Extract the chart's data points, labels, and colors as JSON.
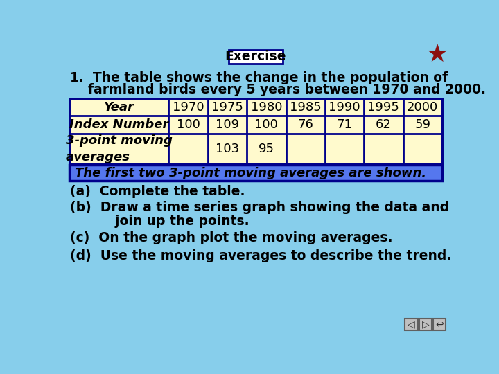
{
  "bg_color": "#87CEEB",
  "title_box_text": "Exercise",
  "title_box_facecolor": "#FFFFFF",
  "title_box_edgecolor": "#00008B",
  "intro_line1": "1.  The table shows the change in the population of",
  "intro_line2": "    farmland birds every 5 years between 1970 and 2000.",
  "table_years": [
    "Year",
    "1970",
    "1975",
    "1980",
    "1985",
    "1990",
    "1995",
    "2000"
  ],
  "table_index": [
    "Index Number",
    "100",
    "109",
    "100",
    "76",
    "71",
    "62",
    "59"
  ],
  "table_moving_label": "3-point moving\naverages",
  "table_moving_values": [
    "",
    "103",
    "95",
    "",
    "",
    "",
    ""
  ],
  "table_facecolor": "#FFFACD",
  "table_edgecolor": "#00008B",
  "highlight_text": "The first two 3-point moving averages are shown.",
  "highlight_bg": "#5577EE",
  "highlight_edge": "#00008B",
  "bullet_a": "(a)  Complete the table.",
  "bullet_b1": "(b)  Draw a time series graph showing the data and",
  "bullet_b2": "          join up the points.",
  "bullet_c": "(c)  On the graph plot the moving averages.",
  "bullet_d": "(d)  Use the moving averages to describe the trend.",
  "text_color": "#000000",
  "dark_navy": "#00008B",
  "star_color": "#8B1010",
  "font_size": 13.5,
  "table_font_size": 13.0,
  "nav_color": "#C0C0C0"
}
